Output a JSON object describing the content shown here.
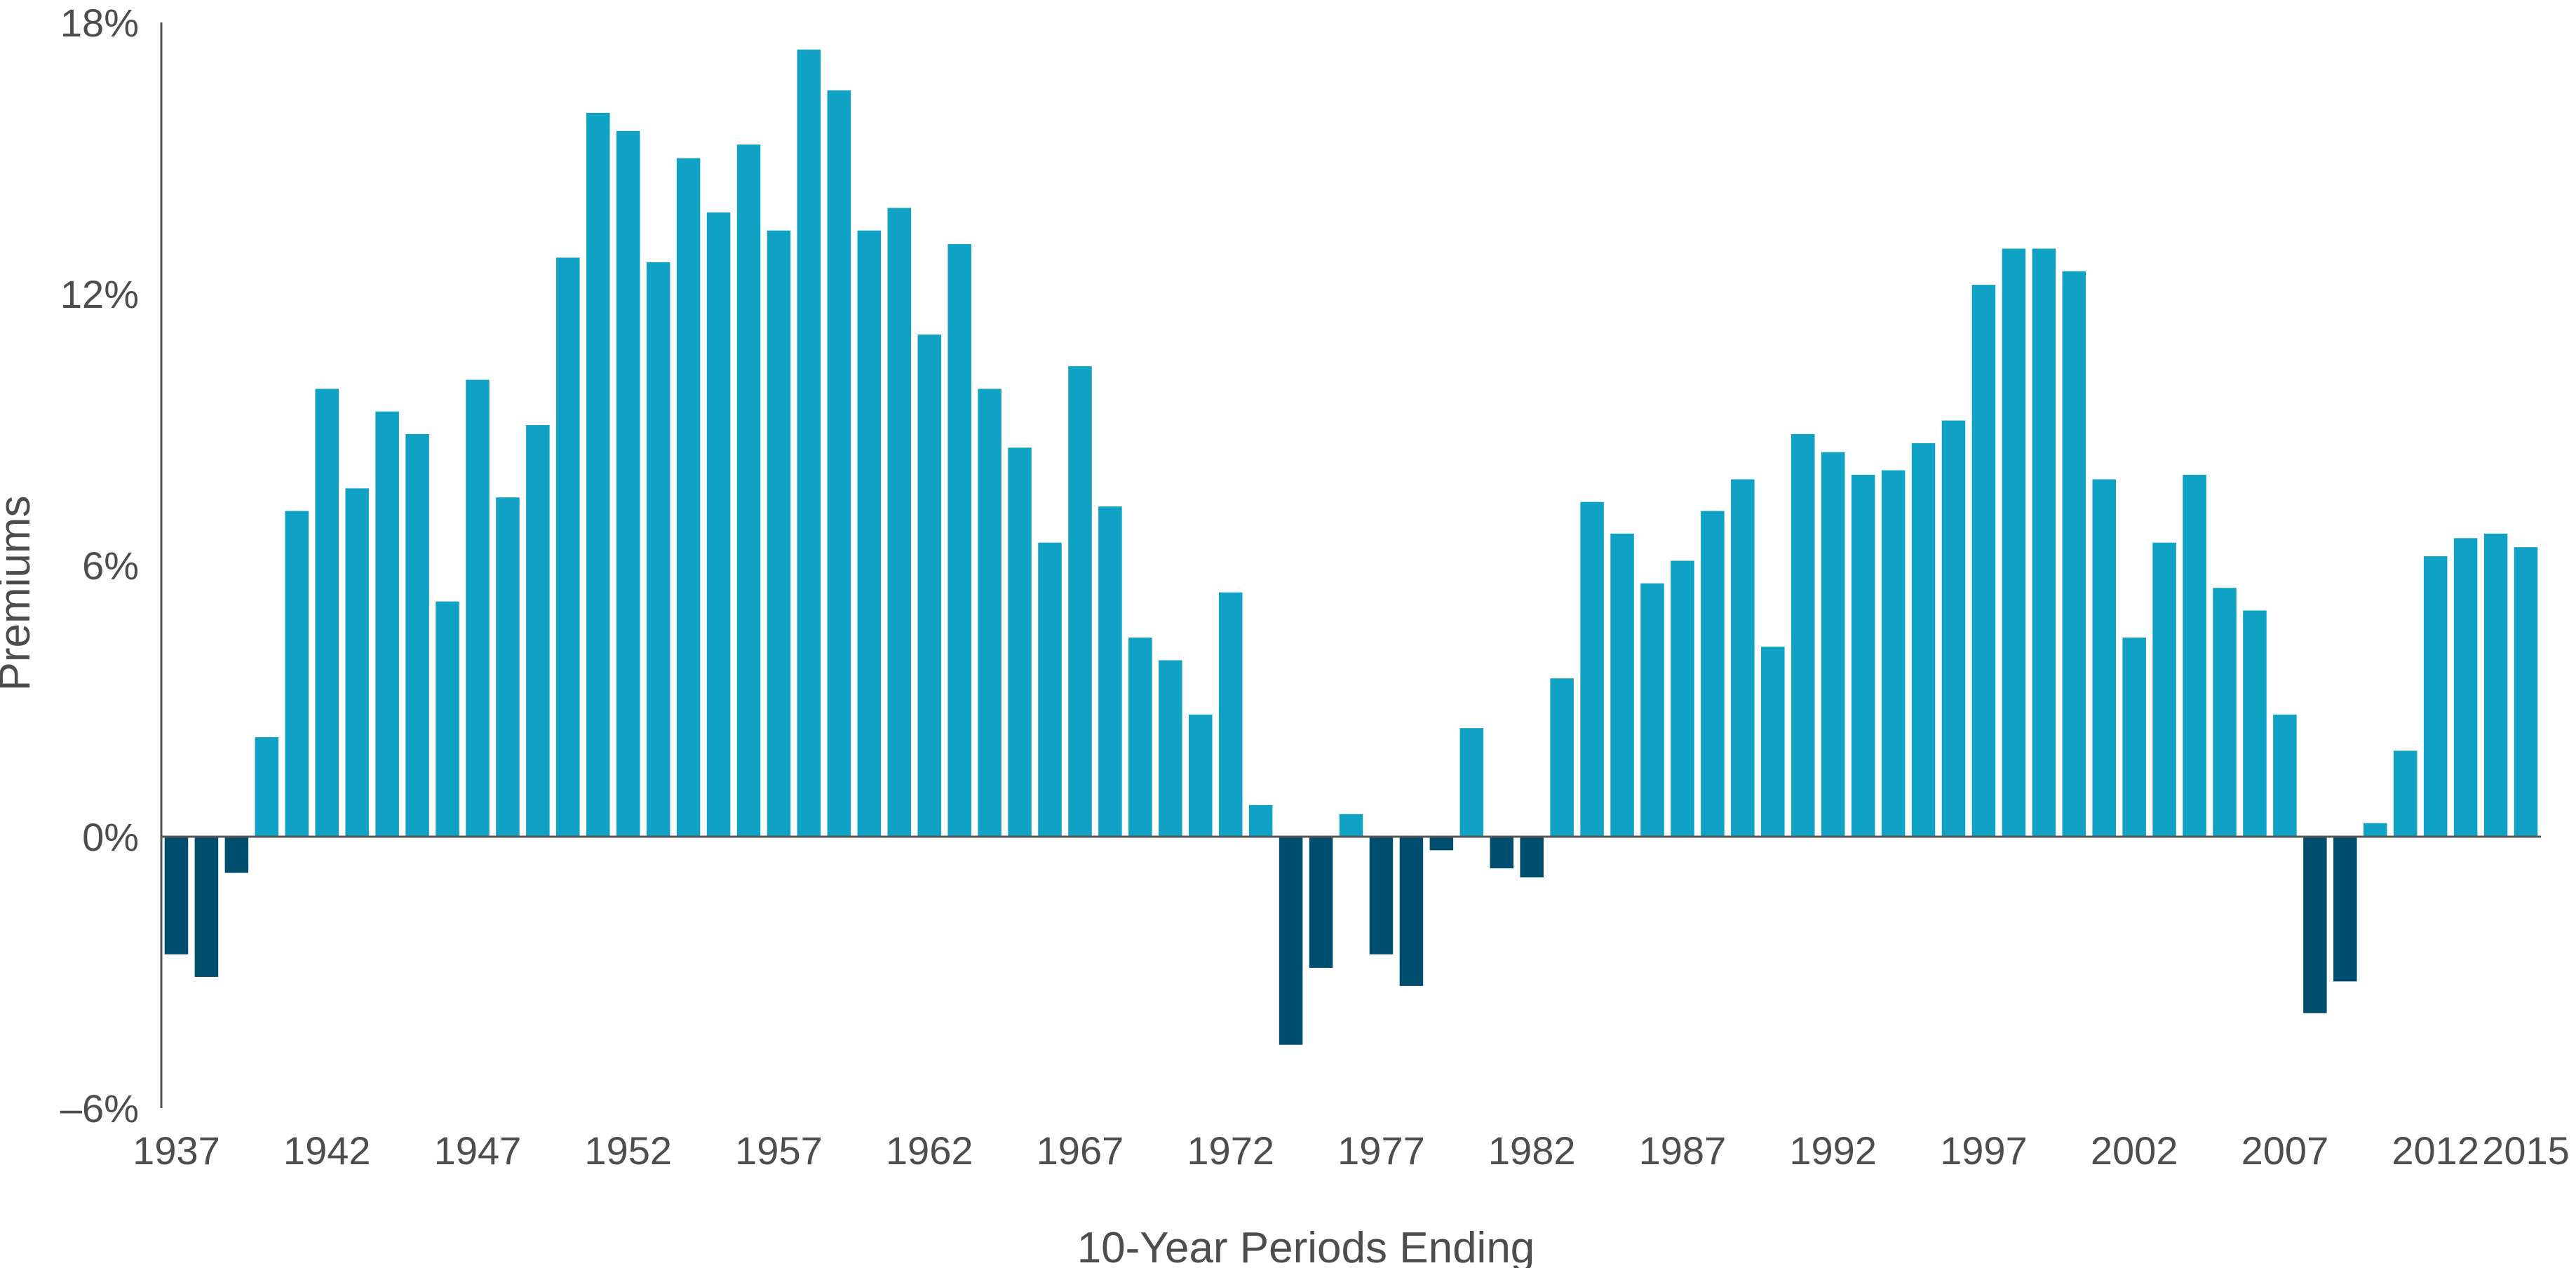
{
  "chart_data": {
    "type": "bar",
    "title": "",
    "xlabel": "10-Year Periods Ending",
    "ylabel": "Premiums",
    "ylim": [
      -6,
      18
    ],
    "y_ticks": [
      {
        "value": -6,
        "label": "–6%"
      },
      {
        "value": 0,
        "label": "0%"
      },
      {
        "value": 6,
        "label": "6%"
      },
      {
        "value": 12,
        "label": "12%"
      },
      {
        "value": 18,
        "label": "18%"
      }
    ],
    "x_tick_labels": [
      "1937",
      "1942",
      "1947",
      "1952",
      "1957",
      "1962",
      "1967",
      "1972",
      "1977",
      "1982",
      "1987",
      "1992",
      "1997",
      "2002",
      "2007",
      "2012",
      "2015"
    ],
    "colors": {
      "positive": "#10A2C5",
      "negative": "#004E6E",
      "axis": "#555555",
      "text": "#4D4D4D"
    },
    "grid": false,
    "legend": "none",
    "categories": [
      "1937",
      "1938",
      "1939",
      "1940",
      "1941",
      "1942",
      "1943",
      "1944",
      "1945",
      "1946",
      "1947",
      "1948",
      "1949",
      "1950",
      "1951",
      "1952",
      "1953",
      "1954",
      "1955",
      "1956",
      "1957",
      "1958",
      "1959",
      "1960",
      "1961",
      "1962",
      "1963",
      "1964",
      "1965",
      "1966",
      "1967",
      "1968",
      "1969",
      "1970",
      "1971",
      "1972",
      "1973",
      "1974",
      "1975",
      "1976",
      "1977",
      "1978",
      "1979",
      "1980",
      "1981",
      "1982",
      "1983",
      "1984",
      "1985",
      "1986",
      "1987",
      "1988",
      "1989",
      "1990",
      "1991",
      "1992",
      "1993",
      "1994",
      "1995",
      "1996",
      "1997",
      "1998",
      "1999",
      "2000",
      "2001",
      "2002",
      "2003",
      "2004",
      "2005",
      "2006",
      "2007",
      "2008",
      "2009",
      "2010",
      "2011",
      "2012",
      "2013",
      "2014",
      "2015"
    ],
    "values": [
      -2.6,
      -3.1,
      -0.8,
      2.2,
      7.2,
      9.9,
      7.7,
      9.4,
      8.9,
      5.2,
      10.1,
      7.5,
      9.1,
      12.8,
      16.0,
      15.6,
      12.7,
      15.0,
      13.8,
      15.3,
      13.4,
      17.4,
      16.5,
      13.4,
      13.9,
      11.1,
      13.1,
      9.9,
      8.6,
      6.5,
      10.4,
      7.3,
      4.4,
      3.9,
      2.7,
      5.4,
      0.7,
      -4.6,
      -2.9,
      0.5,
      -2.6,
      -3.3,
      -0.3,
      2.4,
      -0.7,
      -0.9,
      3.5,
      7.4,
      6.7,
      5.6,
      6.1,
      7.2,
      7.9,
      4.2,
      8.9,
      8.5,
      8.0,
      8.1,
      8.7,
      9.2,
      12.2,
      13.0,
      13.0,
      12.5,
      7.9,
      4.4,
      6.5,
      8.0,
      5.5,
      5.0,
      2.7,
      -3.9,
      -3.2,
      0.3,
      1.9,
      6.2,
      6.6,
      6.7,
      6.4
    ]
  }
}
